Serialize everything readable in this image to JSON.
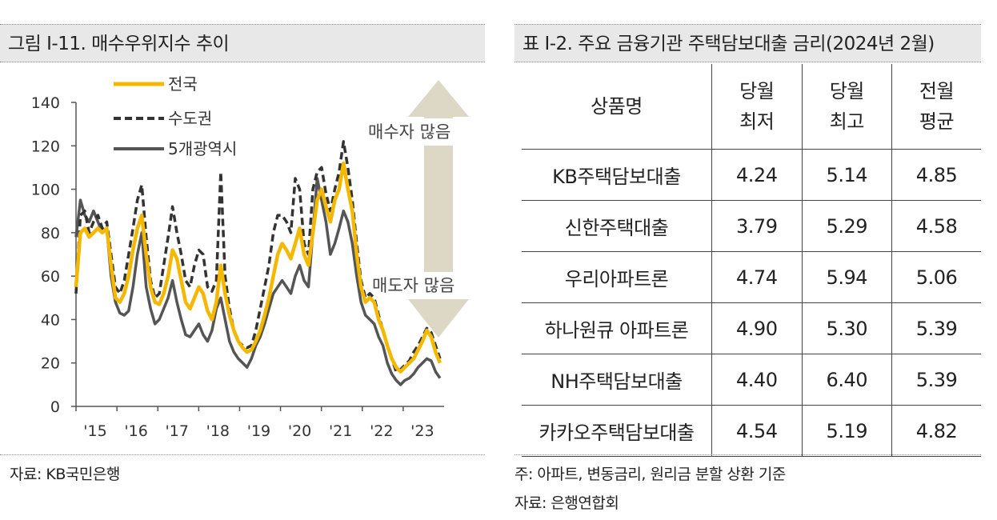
{
  "left": {
    "title": "그림 Ⅰ-11. 매수우위지수 추이",
    "source": "자료: KB국민은행"
  },
  "right": {
    "title": "표 Ⅰ-2. 주요 금융기관 주택담보대출 금리(2024년 2월)",
    "headers": [
      "상품명",
      "당월",
      "최저",
      "당월",
      "최고",
      "전월",
      "평균"
    ],
    "rows": [
      [
        "KB주택담보대출",
        "4.24",
        "5.14",
        "4.85"
      ],
      [
        "신한주택대출",
        "3.79",
        "5.29",
        "4.58"
      ],
      [
        "우리아파트론",
        "4.74",
        "5.94",
        "5.06"
      ],
      [
        "하나원큐 아파트론",
        "4.90",
        "5.30",
        "5.39"
      ],
      [
        "NH주택담보대출",
        "4.40",
        "6.40",
        "5.39"
      ],
      [
        "카카오주택담보대출",
        "4.54",
        "5.19",
        "4.82"
      ]
    ],
    "note": "주: 아파트, 변동금리, 원리금 분할 상환 기준",
    "source": "자료: 은행연합회"
  },
  "chart_data": [
    {
      "type": "line",
      "title": "그림 Ⅰ-11. 매수우위지수 추이",
      "ylim": [
        0,
        140
      ],
      "yticks": [
        "0",
        "20",
        "40",
        "60",
        "80",
        "100",
        "120",
        "140"
      ],
      "xticks": [
        "'15",
        "'16",
        "'17",
        "'18",
        "'19",
        "'20",
        "'21",
        "'22",
        "'23"
      ],
      "x_start_year": 2015,
      "x_end_year": 2024,
      "annotations": {
        "up": "매수자 많음",
        "down": "매도자 많음"
      },
      "series": [
        {
          "name": "전국",
          "color": "#f5b800",
          "style": "solid",
          "values": [
            55,
            80,
            82,
            78,
            80,
            82,
            80,
            82,
            65,
            50,
            48,
            52,
            60,
            72,
            82,
            88,
            70,
            55,
            48,
            47,
            52,
            60,
            72,
            68,
            58,
            48,
            45,
            50,
            55,
            52,
            44,
            40,
            48,
            65,
            52,
            42,
            35,
            30,
            27,
            25,
            26,
            30,
            35,
            42,
            50,
            60,
            70,
            75,
            72,
            68,
            75,
            82,
            70,
            65,
            80,
            95,
            100,
            92,
            85,
            95,
            100,
            112,
            100,
            90,
            70,
            55,
            48,
            50,
            48,
            40,
            35,
            28,
            22,
            18,
            16,
            18,
            20,
            22,
            26,
            30,
            35,
            32,
            25,
            20
          ]
        },
        {
          "name": "수도권",
          "color": "#333333",
          "style": "dashed",
          "values": [
            52,
            88,
            90,
            80,
            85,
            88,
            82,
            85,
            70,
            55,
            52,
            58,
            70,
            82,
            95,
            102,
            78,
            58,
            50,
            52,
            65,
            78,
            92,
            80,
            70,
            58,
            55,
            65,
            72,
            70,
            55,
            53,
            58,
            108,
            60,
            45,
            35,
            30,
            28,
            27,
            28,
            35,
            45,
            55,
            65,
            80,
            88,
            88,
            85,
            80,
            105,
            100,
            75,
            70,
            100,
            108,
            110,
            98,
            90,
            100,
            108,
            122,
            110,
            95,
            75,
            58,
            50,
            52,
            50,
            42,
            35,
            28,
            22,
            16,
            17,
            19,
            21,
            25,
            28,
            32,
            36,
            34,
            28,
            22
          ]
        },
        {
          "name": "5개광역시",
          "color": "#555555",
          "style": "solid",
          "values": [
            78,
            95,
            88,
            85,
            90,
            85,
            80,
            82,
            60,
            48,
            43,
            42,
            44,
            55,
            70,
            80,
            55,
            45,
            38,
            40,
            45,
            50,
            58,
            48,
            40,
            33,
            32,
            35,
            38,
            33,
            30,
            35,
            45,
            50,
            40,
            30,
            25,
            22,
            20,
            18,
            22,
            28,
            32,
            38,
            45,
            52,
            55,
            58,
            55,
            52,
            60,
            65,
            58,
            55,
            80,
            105,
            95,
            85,
            70,
            75,
            82,
            90,
            85,
            75,
            60,
            48,
            42,
            40,
            38,
            32,
            28,
            20,
            15,
            12,
            10,
            12,
            13,
            15,
            18,
            20,
            22,
            21,
            16,
            13
          ]
        }
      ]
    },
    {
      "type": "table",
      "title": "표 Ⅰ-2. 주요 금융기관 주택담보대출 금리(2024년 2월)",
      "columns": [
        "상품명",
        "당월 최저",
        "당월 최고",
        "전월 평균"
      ],
      "rows": [
        [
          "KB주택담보대출",
          4.24,
          5.14,
          4.85
        ],
        [
          "신한주택대출",
          3.79,
          5.29,
          4.58
        ],
        [
          "우리아파트론",
          4.74,
          5.94,
          5.06
        ],
        [
          "하나원큐 아파트론",
          4.9,
          5.3,
          5.39
        ],
        [
          "NH주택담보대출",
          4.4,
          6.4,
          5.39
        ],
        [
          "카카오주택담보대출",
          4.54,
          5.19,
          4.82
        ]
      ]
    }
  ]
}
